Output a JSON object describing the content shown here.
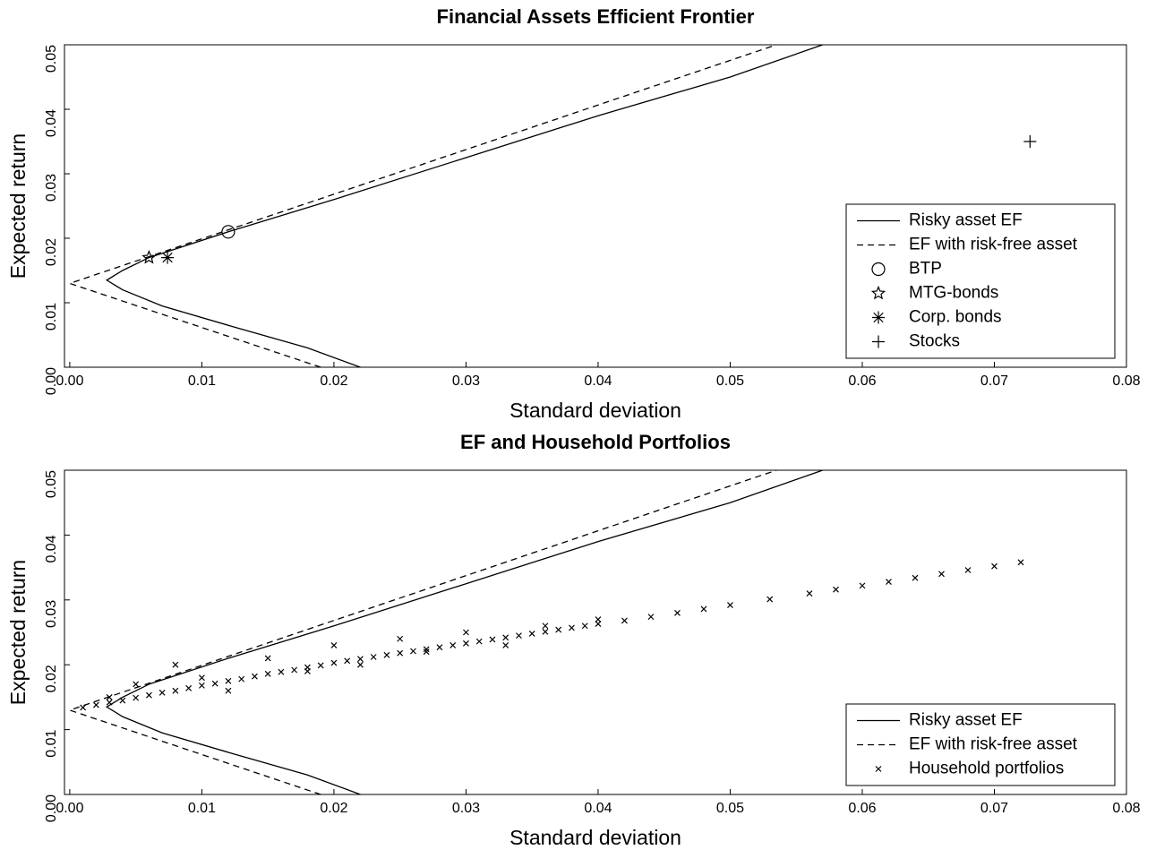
{
  "chart_data": [
    {
      "type": "line",
      "title": "Financial Assets Efficient Frontier",
      "xlabel": "Standard deviation",
      "ylabel": "Expected return",
      "xlim": [
        -0.0004,
        0.08
      ],
      "ylim": [
        0,
        0.05
      ],
      "xticks": [
        {
          "value": 0,
          "label": "0.00"
        },
        0.01,
        0.02,
        0.03,
        0.04,
        0.05,
        0.06,
        0.07,
        0.08
      ],
      "yticks": [
        {
          "value": 0,
          "label": "0.00"
        },
        0.01,
        0.02,
        0.03,
        0.04,
        0.05
      ],
      "legend": "lower right",
      "color": "#000000",
      "series": [
        {
          "name": "Risky asset EF",
          "linestyle": "solid",
          "x": [
            0.022,
            0.018,
            0.012,
            0.007,
            0.004,
            0.0028,
            0.004,
            0.006,
            0.012,
            0.02,
            0.03,
            0.04,
            0.05,
            0.057
          ],
          "values": [
            0.0,
            0.003,
            0.0065,
            0.0095,
            0.012,
            0.0135,
            0.015,
            0.017,
            0.021,
            0.026,
            0.0325,
            0.039,
            0.045,
            0.05
          ]
        },
        {
          "name": "EF with risk-free asset",
          "linestyle": "dashed",
          "x": [
            0.019,
            0,
            0.0535
          ],
          "values": [
            0.0,
            0.013,
            0.05
          ]
        },
        {
          "name": "BTP",
          "marker": "circle",
          "x": [
            0.012
          ],
          "values": [
            0.021
          ]
        },
        {
          "name": "MTG-bonds",
          "marker": "star",
          "x": [
            0.006
          ],
          "values": [
            0.017
          ]
        },
        {
          "name": "Corp. bonds",
          "marker": "asterisk",
          "x": [
            0.0074
          ],
          "values": [
            0.017
          ]
        },
        {
          "name": "Stocks",
          "marker": "plus",
          "x": [
            0.0727
          ],
          "values": [
            0.035
          ]
        }
      ]
    },
    {
      "type": "line",
      "title": "EF and Household Portfolios",
      "xlabel": "Standard deviation",
      "ylabel": "Expected return",
      "xlim": [
        -0.0004,
        0.08
      ],
      "ylim": [
        0,
        0.05
      ],
      "xticks": [
        {
          "value": 0,
          "label": "0.00"
        },
        0.01,
        0.02,
        0.03,
        0.04,
        0.05,
        0.06,
        0.07,
        0.08
      ],
      "yticks": [
        {
          "value": 0,
          "label": "0.00"
        },
        0.01,
        0.02,
        0.03,
        0.04,
        0.05
      ],
      "legend": "lower right",
      "color": "#000000",
      "series": [
        {
          "name": "Risky asset EF",
          "linestyle": "solid",
          "x": [
            0.022,
            0.018,
            0.012,
            0.007,
            0.004,
            0.0028,
            0.004,
            0.006,
            0.012,
            0.02,
            0.03,
            0.04,
            0.05,
            0.057
          ],
          "values": [
            0.0,
            0.003,
            0.0065,
            0.0095,
            0.012,
            0.0135,
            0.015,
            0.017,
            0.021,
            0.026,
            0.0325,
            0.039,
            0.045,
            0.05
          ]
        },
        {
          "name": "EF with risk-free asset",
          "linestyle": "dashed",
          "x": [
            0.019,
            0,
            0.0535
          ],
          "values": [
            0.0,
            0.013,
            0.05
          ]
        },
        {
          "name": "Household portfolios",
          "marker": "x",
          "x": [
            0.001,
            0.002,
            0.003,
            0.004,
            0.005,
            0.006,
            0.007,
            0.008,
            0.009,
            0.01,
            0.011,
            0.012,
            0.013,
            0.014,
            0.015,
            0.016,
            0.017,
            0.018,
            0.019,
            0.02,
            0.021,
            0.022,
            0.023,
            0.024,
            0.025,
            0.026,
            0.027,
            0.028,
            0.029,
            0.03,
            0.031,
            0.032,
            0.033,
            0.034,
            0.035,
            0.036,
            0.037,
            0.038,
            0.039,
            0.04,
            0.042,
            0.044,
            0.046,
            0.048,
            0.05,
            0.053,
            0.056,
            0.058,
            0.06,
            0.062,
            0.064,
            0.066,
            0.068,
            0.07,
            0.072,
            0.003,
            0.005,
            0.008,
            0.01,
            0.012,
            0.015,
            0.018,
            0.02,
            0.022,
            0.025,
            0.027,
            0.03,
            0.033,
            0.036,
            0.04
          ],
          "values": [
            0.0134,
            0.0138,
            0.0142,
            0.0145,
            0.0149,
            0.0153,
            0.0157,
            0.016,
            0.0164,
            0.0168,
            0.0171,
            0.0175,
            0.0178,
            0.0182,
            0.0186,
            0.0189,
            0.0192,
            0.0196,
            0.0199,
            0.0203,
            0.0206,
            0.0209,
            0.0212,
            0.0215,
            0.0218,
            0.0221,
            0.0224,
            0.0227,
            0.023,
            0.0233,
            0.0236,
            0.0239,
            0.0242,
            0.0245,
            0.0248,
            0.0251,
            0.0254,
            0.0257,
            0.026,
            0.0263,
            0.0268,
            0.0274,
            0.028,
            0.0286,
            0.0292,
            0.0301,
            0.031,
            0.0316,
            0.0322,
            0.0328,
            0.0334,
            0.034,
            0.0346,
            0.0352,
            0.0358,
            0.015,
            0.017,
            0.02,
            0.018,
            0.016,
            0.021,
            0.019,
            0.023,
            0.02,
            0.024,
            0.022,
            0.025,
            0.023,
            0.026,
            0.027
          ]
        }
      ]
    }
  ]
}
